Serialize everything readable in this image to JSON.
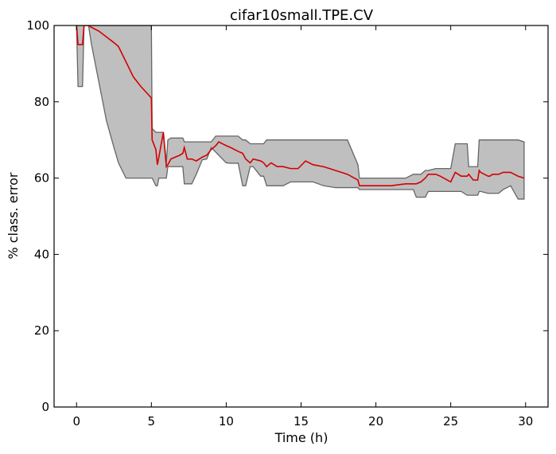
{
  "chart_data": {
    "type": "line",
    "title": "cifar10small.TPE.CV",
    "xlabel": "Time (h)",
    "ylabel": "% class. error",
    "xlim": [
      -1.5,
      31.5
    ],
    "ylim": [
      0,
      100
    ],
    "xticks": [
      0,
      5,
      10,
      15,
      20,
      25,
      30
    ],
    "yticks": [
      0,
      20,
      40,
      60,
      80,
      100
    ],
    "grid": false,
    "colors": {
      "line": "#d40000",
      "band_fill": "#bfbfbf",
      "band_edge": "#666666"
    },
    "series": [
      {
        "x": [
          0,
          0.1,
          0.2,
          0.4,
          0.5,
          0.8,
          1.0,
          1.5,
          2.0,
          2.5,
          2.8,
          3.3,
          3.8,
          4.3,
          5.0,
          5.05,
          5.3,
          5.4,
          5.5,
          5.8,
          6.0,
          6.1,
          6.3,
          6.6,
          6.9,
          7.1,
          7.2,
          7.4,
          7.7,
          8.0,
          8.4,
          8.7,
          9.0,
          9.3,
          9.5,
          10.0,
          10.3,
          10.8,
          11.1,
          11.3,
          11.6,
          11.8,
          12.3,
          12.5,
          12.7,
          13.0,
          13.4,
          13.8,
          14.3,
          14.8,
          15.3,
          15.8,
          16.5,
          17.3,
          18.1,
          18.8,
          18.9,
          19.5,
          20.0,
          21.0,
          22.0,
          22.5,
          22.7,
          23.0,
          23.3,
          23.5,
          24.0,
          24.3,
          25.0,
          25.3,
          25.7,
          26.1,
          26.2,
          26.5,
          26.8,
          26.9,
          27.0,
          27.5,
          27.6,
          27.8,
          28.2,
          28.5,
          29.0,
          29.5,
          29.9
        ],
        "upper": [
          100,
          100,
          100,
          100,
          100,
          100,
          100,
          100,
          100,
          100,
          100,
          100,
          100,
          100,
          100,
          73,
          72,
          72,
          72,
          72,
          64,
          70,
          70.5,
          70.5,
          70.5,
          70.5,
          69.5,
          69.5,
          69.5,
          69.5,
          69.5,
          69.5,
          69.5,
          71,
          71,
          71,
          71,
          71,
          70,
          70,
          69,
          69,
          69,
          69,
          70,
          70,
          70,
          70,
          70,
          70,
          70,
          70,
          70,
          70,
          70,
          63.5,
          60,
          60,
          60,
          60,
          60,
          61,
          61,
          61,
          62,
          62,
          62.5,
          62.5,
          62.5,
          69,
          69,
          69,
          63,
          63,
          63,
          70,
          70,
          70,
          70,
          70,
          70,
          70,
          70,
          70,
          69.5
        ],
        "lower": [
          100,
          84,
          84,
          84,
          100,
          100,
          95,
          85,
          75,
          68,
          64,
          60,
          60,
          60,
          60,
          60,
          58,
          58,
          60,
          60,
          60,
          63,
          63,
          63,
          63,
          63,
          58.5,
          58.5,
          58.5,
          61,
          64.8,
          65,
          68,
          66.8,
          66,
          64,
          63.9,
          63.9,
          58,
          58,
          63,
          63,
          60.5,
          60.5,
          58,
          58,
          58,
          58,
          59,
          59,
          59,
          59,
          58,
          57.5,
          57.5,
          57.5,
          57,
          57,
          57,
          57,
          57,
          57,
          55,
          55,
          55,
          56.5,
          56.5,
          56.5,
          56.5,
          56.5,
          56.5,
          55.5,
          55.5,
          55.5,
          55.5,
          56.5,
          56.5,
          56,
          56,
          56,
          56,
          57,
          58,
          54.5,
          54.5
        ],
        "values": [
          100,
          95,
          95,
          95,
          100,
          100,
          99.5,
          98.5,
          97,
          95.5,
          94.5,
          90.5,
          86.5,
          84,
          81,
          70,
          67.5,
          63.5,
          65.5,
          72,
          63,
          63.5,
          65,
          65.5,
          66,
          66.5,
          68,
          65,
          65,
          64.5,
          65.5,
          66,
          67.5,
          68.5,
          69.5,
          68.5,
          68,
          67,
          66.5,
          65,
          64,
          65,
          64.5,
          64,
          63,
          64,
          63,
          63,
          62.5,
          62.5,
          64.5,
          63.5,
          63,
          62,
          61,
          59.5,
          58,
          58,
          58,
          58,
          58.5,
          58.5,
          58.5,
          59,
          60,
          61,
          61,
          60.5,
          59,
          61.5,
          60.5,
          60.5,
          61,
          59.5,
          59.5,
          62,
          61.5,
          60.5,
          60.5,
          61,
          61,
          61.5,
          61.5,
          60.5,
          60
        ]
      }
    ]
  }
}
